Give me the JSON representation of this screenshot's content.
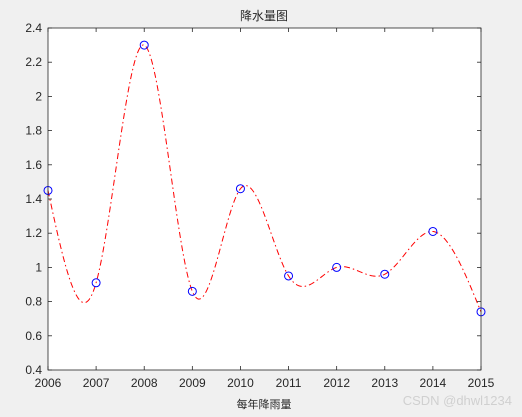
{
  "chart_data": {
    "type": "line",
    "title": "降水量图",
    "xlabel": "每年降雨量",
    "ylabel": "",
    "xlim": [
      2006,
      2015
    ],
    "ylim": [
      0.4,
      2.4
    ],
    "x_ticks": [
      "2006",
      "2007",
      "2008",
      "2009",
      "2010",
      "2011",
      "2012",
      "2013",
      "2014",
      "2015"
    ],
    "y_ticks": [
      "0.4",
      "0.6",
      "0.8",
      "1",
      "1.2",
      "1.4",
      "1.6",
      "1.8",
      "2",
      "2.2",
      "2.4"
    ],
    "grid": false,
    "series": [
      {
        "style": "markers",
        "marker": "circle",
        "color": "#0000ff",
        "x": [
          2006,
          2007,
          2008,
          2009,
          2010,
          2011,
          2012,
          2013,
          2014,
          2015
        ],
        "y": [
          1.45,
          0.91,
          2.3,
          0.86,
          1.46,
          0.95,
          1.0,
          0.96,
          1.21,
          0.74
        ]
      },
      {
        "style": "dash-dot spline",
        "color": "#ff0000",
        "x": [
          2006,
          2007,
          2008,
          2009,
          2010,
          2011,
          2012,
          2013,
          2014,
          2015
        ],
        "y": [
          1.45,
          0.91,
          2.3,
          0.86,
          1.46,
          0.95,
          1.0,
          0.96,
          1.21,
          0.74
        ]
      }
    ]
  },
  "watermark": "CSDN @dhwl1234"
}
